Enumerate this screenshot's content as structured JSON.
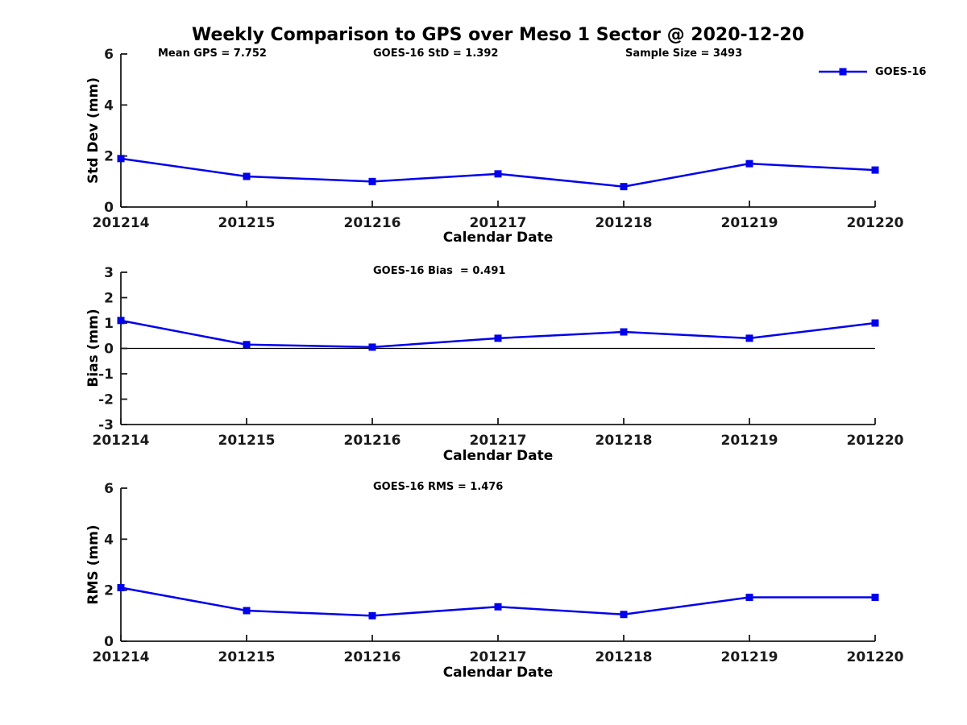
{
  "title": "Weekly Comparison to GPS over Meso 1 Sector @ 2020-12-20",
  "legend": {
    "label": "GOES-16",
    "position": "top-right",
    "marker": "square"
  },
  "colors": {
    "series": "#0000EE",
    "axis": "#1a1a1a",
    "text": "#000000",
    "zero_line": "#000000"
  },
  "chart_data": [
    {
      "type": "line",
      "name": "std-dev-vs-date",
      "annotations": [
        "Mean GPS = 7.752",
        "GOES-16 StD = 1.392",
        "Sample Size = 3493"
      ],
      "categories": [
        "201214",
        "201215",
        "201216",
        "201217",
        "201218",
        "201219",
        "201220"
      ],
      "series": [
        {
          "name": "GOES-16",
          "values": [
            1.9,
            1.2,
            1.0,
            1.3,
            0.8,
            1.7,
            1.45
          ]
        }
      ],
      "xlabel": "Calendar Date",
      "ylabel": "Std Dev (mm)",
      "ylim": [
        0,
        6
      ],
      "yticks": [
        0,
        2,
        4,
        6
      ],
      "grid": false,
      "zero_line": false,
      "marker": "square",
      "legend_position": "top-right"
    },
    {
      "type": "line",
      "name": "bias-vs-date",
      "subtitle": "GOES-16 Bias  = 0.491",
      "categories": [
        "201214",
        "201215",
        "201216",
        "201217",
        "201218",
        "201219",
        "201220"
      ],
      "series": [
        {
          "name": "GOES-16",
          "values": [
            1.1,
            0.15,
            0.05,
            0.4,
            0.65,
            0.4,
            1.0
          ]
        }
      ],
      "xlabel": "Calendar Date",
      "ylabel": "Bias (mm)",
      "ylim": [
        -3,
        3
      ],
      "yticks": [
        3,
        2,
        1,
        0,
        -1,
        -2,
        -3
      ],
      "grid": false,
      "zero_line": true,
      "marker": "square",
      "legend_position": "none"
    },
    {
      "type": "line",
      "name": "rms-vs-date",
      "subtitle": "GOES-16 RMS = 1.476",
      "categories": [
        "201214",
        "201215",
        "201216",
        "201217",
        "201218",
        "201219",
        "201220"
      ],
      "series": [
        {
          "name": "GOES-16",
          "values": [
            2.1,
            1.2,
            1.0,
            1.35,
            1.05,
            1.72,
            1.72
          ]
        }
      ],
      "xlabel": "Calendar Date",
      "ylabel": "RMS (mm)",
      "ylim": [
        0,
        6
      ],
      "yticks": [
        0,
        2,
        4,
        6
      ],
      "grid": false,
      "zero_line": false,
      "marker": "square",
      "legend_position": "none"
    }
  ]
}
